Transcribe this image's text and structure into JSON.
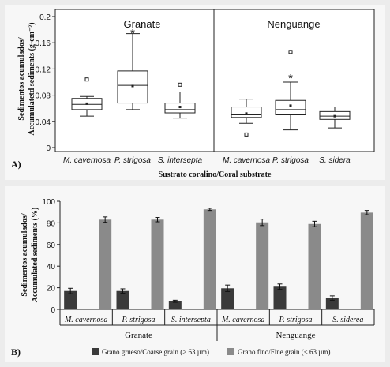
{
  "chart_data": [
    {
      "panel_label": "A)",
      "type": "box",
      "ylabel_lines": [
        "Sedimentos acumulados/",
        "Accumulatetd sediments (g·cm⁻²)"
      ],
      "xlabel": "Sustrato coralino/Coral substrate",
      "ylim": [
        0,
        0.2
      ],
      "yticks": [
        0,
        0.04,
        0.08,
        0.12,
        0.16,
        0.2
      ],
      "ytick_labels": [
        "0",
        "0.04",
        "0.08",
        "0.12",
        "0.16",
        "0.2"
      ],
      "grid": false,
      "groups": [
        {
          "name": "Granate",
          "boxes": [
            {
              "category": "M. cavernosa",
              "whisker_low": 0.048,
              "q1": 0.058,
              "median": 0.066,
              "q3": 0.075,
              "whisker_high": 0.078,
              "mean": 0.067,
              "outliers": [
                0.104
              ],
              "extremes": []
            },
            {
              "category": "P. strigosa",
              "whisker_low": 0.058,
              "q1": 0.068,
              "median": 0.095,
              "q3": 0.117,
              "whisker_high": 0.174,
              "mean": 0.094,
              "outliers": [],
              "extremes": [
                0.176
              ]
            },
            {
              "category": "S. intersepta",
              "whisker_low": 0.045,
              "q1": 0.053,
              "median": 0.058,
              "q3": 0.068,
              "whisker_high": 0.085,
              "mean": 0.062,
              "outliers": [
                0.096
              ],
              "extremes": []
            }
          ]
        },
        {
          "name": "Nenguange",
          "boxes": [
            {
              "category": "M. cavernosa",
              "whisker_low": 0.037,
              "q1": 0.046,
              "median": 0.05,
              "q3": 0.062,
              "whisker_high": 0.074,
              "mean": 0.052,
              "outliers": [
                0.02
              ],
              "extremes": []
            },
            {
              "category": "P. strigosa",
              "whisker_low": 0.027,
              "q1": 0.05,
              "median": 0.058,
              "q3": 0.072,
              "whisker_high": 0.1,
              "mean": 0.064,
              "outliers": [
                0.146
              ],
              "extremes": [
                0.107
              ]
            },
            {
              "category": "S. sidera",
              "whisker_low": 0.03,
              "q1": 0.043,
              "median": 0.048,
              "q3": 0.055,
              "whisker_high": 0.062,
              "mean": 0.048,
              "outliers": [],
              "extremes": []
            }
          ]
        }
      ],
      "colors": {
        "box_fill": "#ffffff",
        "line": "#222222"
      }
    },
    {
      "panel_label": "B)",
      "type": "bar",
      "ylabel_lines": [
        "Sedimentos acumulados/",
        "Accumulated sediments (%)"
      ],
      "ylim": [
        0,
        100
      ],
      "yticks": [
        0,
        20,
        40,
        60,
        80,
        100
      ],
      "ytick_labels": [
        "0",
        "20",
        "40",
        "60",
        "80",
        "100"
      ],
      "grid": false,
      "groups": [
        {
          "name": "Granate",
          "categories": [
            "M. cavernosa",
            "P. strigosa",
            "S. intersepta"
          ]
        },
        {
          "name": "Nenguange",
          "categories": [
            "M. cavernosa",
            "P. strigosa",
            "S. siderea"
          ]
        }
      ],
      "series": [
        {
          "name": "Grano grueso/Coarse grain (> 63 µm)",
          "color": "#3a3a3a",
          "values": [
            17,
            17,
            7.5,
            19.5,
            21,
            10.5
          ],
          "errors": [
            2.5,
            2,
            1,
            3,
            2.5,
            2
          ]
        },
        {
          "name": "Grano fino/Fine grain (< 63 µm)",
          "color": "#8a8a8a",
          "values": [
            83,
            83,
            92.5,
            80.5,
            79,
            89.5
          ],
          "errors": [
            2.5,
            2,
            1,
            3,
            2.5,
            2
          ]
        }
      ],
      "legend_position": "bottom"
    }
  ]
}
